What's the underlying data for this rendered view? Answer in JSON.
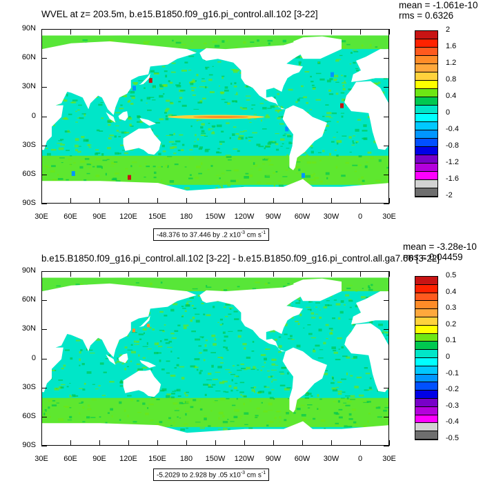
{
  "chart_data": [
    {
      "type": "heatmap",
      "title": "WVEL at z= 203.5m, b.e15.B1850.f09_g16.pi_control.all.102 [3-22]",
      "stats": {
        "mean": "mean = -1.061e-10",
        "rms": "rms = 0.6326"
      },
      "y_ticks": [
        "90N",
        "60N",
        "30N",
        "0",
        "30S",
        "60S",
        "90S"
      ],
      "x_ticks": [
        "30E",
        "60E",
        "90E",
        "120E",
        "150E",
        "180",
        "150W",
        "120W",
        "90W",
        "60W",
        "30W",
        "0",
        "30E"
      ],
      "range_text": "-48.376 to 37.446 by .2 x10",
      "range_exp": "-3",
      "range_unit": "cm s",
      "range_unit_exp": "-1",
      "colorbar_labels": [
        "2",
        "1.6",
        "1.2",
        "0.8",
        "0.4",
        "0",
        "-0.4",
        "-0.8",
        "-1.2",
        "-1.6",
        "-2"
      ],
      "colorbar_colors": [
        "#c81414",
        "#ff2200",
        "#ff5a1e",
        "#ff8c28",
        "#ffa83c",
        "#ffd23c",
        "#ffff00",
        "#6ee614",
        "#00c850",
        "#00e6c8",
        "#00ffff",
        "#00c8ff",
        "#0096ff",
        "#0050ff",
        "#0000e6",
        "#7800c8",
        "#b400dc",
        "#ff00ff",
        "#d2d2d2",
        "#6e6e6e"
      ],
      "ocean_colors": {
        "base": "#00e6c8",
        "band": "#6ee614",
        "hot": "#ffd23c",
        "warm": "#ff8c28",
        "cold": "#0096ff",
        "deep": "#c81414"
      }
    },
    {
      "type": "heatmap",
      "title": "b.e15.B1850.f09_g16.pi_control.all.102 [3-22] - b.e15.B1850.f09_g16.pi_control.all.ga7.66 [3-22]",
      "stats": {
        "mean": "mean = -3.28e-10",
        "rms": "rms = 0.04459"
      },
      "y_ticks": [
        "90N",
        "60N",
        "30N",
        "0",
        "30S",
        "60S",
        "90S"
      ],
      "x_ticks": [
        "30E",
        "60E",
        "90E",
        "120E",
        "150E",
        "180",
        "150W",
        "120W",
        "90W",
        "60W",
        "30W",
        "0",
        "30E"
      ],
      "range_text": "-5.2029 to 2.928 by .05 x10",
      "range_exp": "-3",
      "range_unit": "cm s",
      "range_unit_exp": "-1",
      "colorbar_labels": [
        "0.5",
        "0.4",
        "0.3",
        "0.2",
        "0.1",
        "0",
        "-0.1",
        "-0.2",
        "-0.3",
        "-0.4",
        "-0.5"
      ],
      "colorbar_colors": [
        "#c81414",
        "#ff2200",
        "#ff5a1e",
        "#ff8c28",
        "#ffa83c",
        "#ffd23c",
        "#ffff00",
        "#6ee614",
        "#00c850",
        "#00e6c8",
        "#00ffff",
        "#00c8ff",
        "#0096ff",
        "#0050ff",
        "#0000e6",
        "#7800c8",
        "#b400dc",
        "#ff00ff",
        "#d2d2d2",
        "#6e6e6e"
      ],
      "ocean_colors": {
        "base": "#00e6c8",
        "band": "#6ee614",
        "hot": "#ffd23c",
        "warm": "#ff8c28",
        "cold": "#0096ff",
        "deep": "#c81414"
      }
    }
  ]
}
